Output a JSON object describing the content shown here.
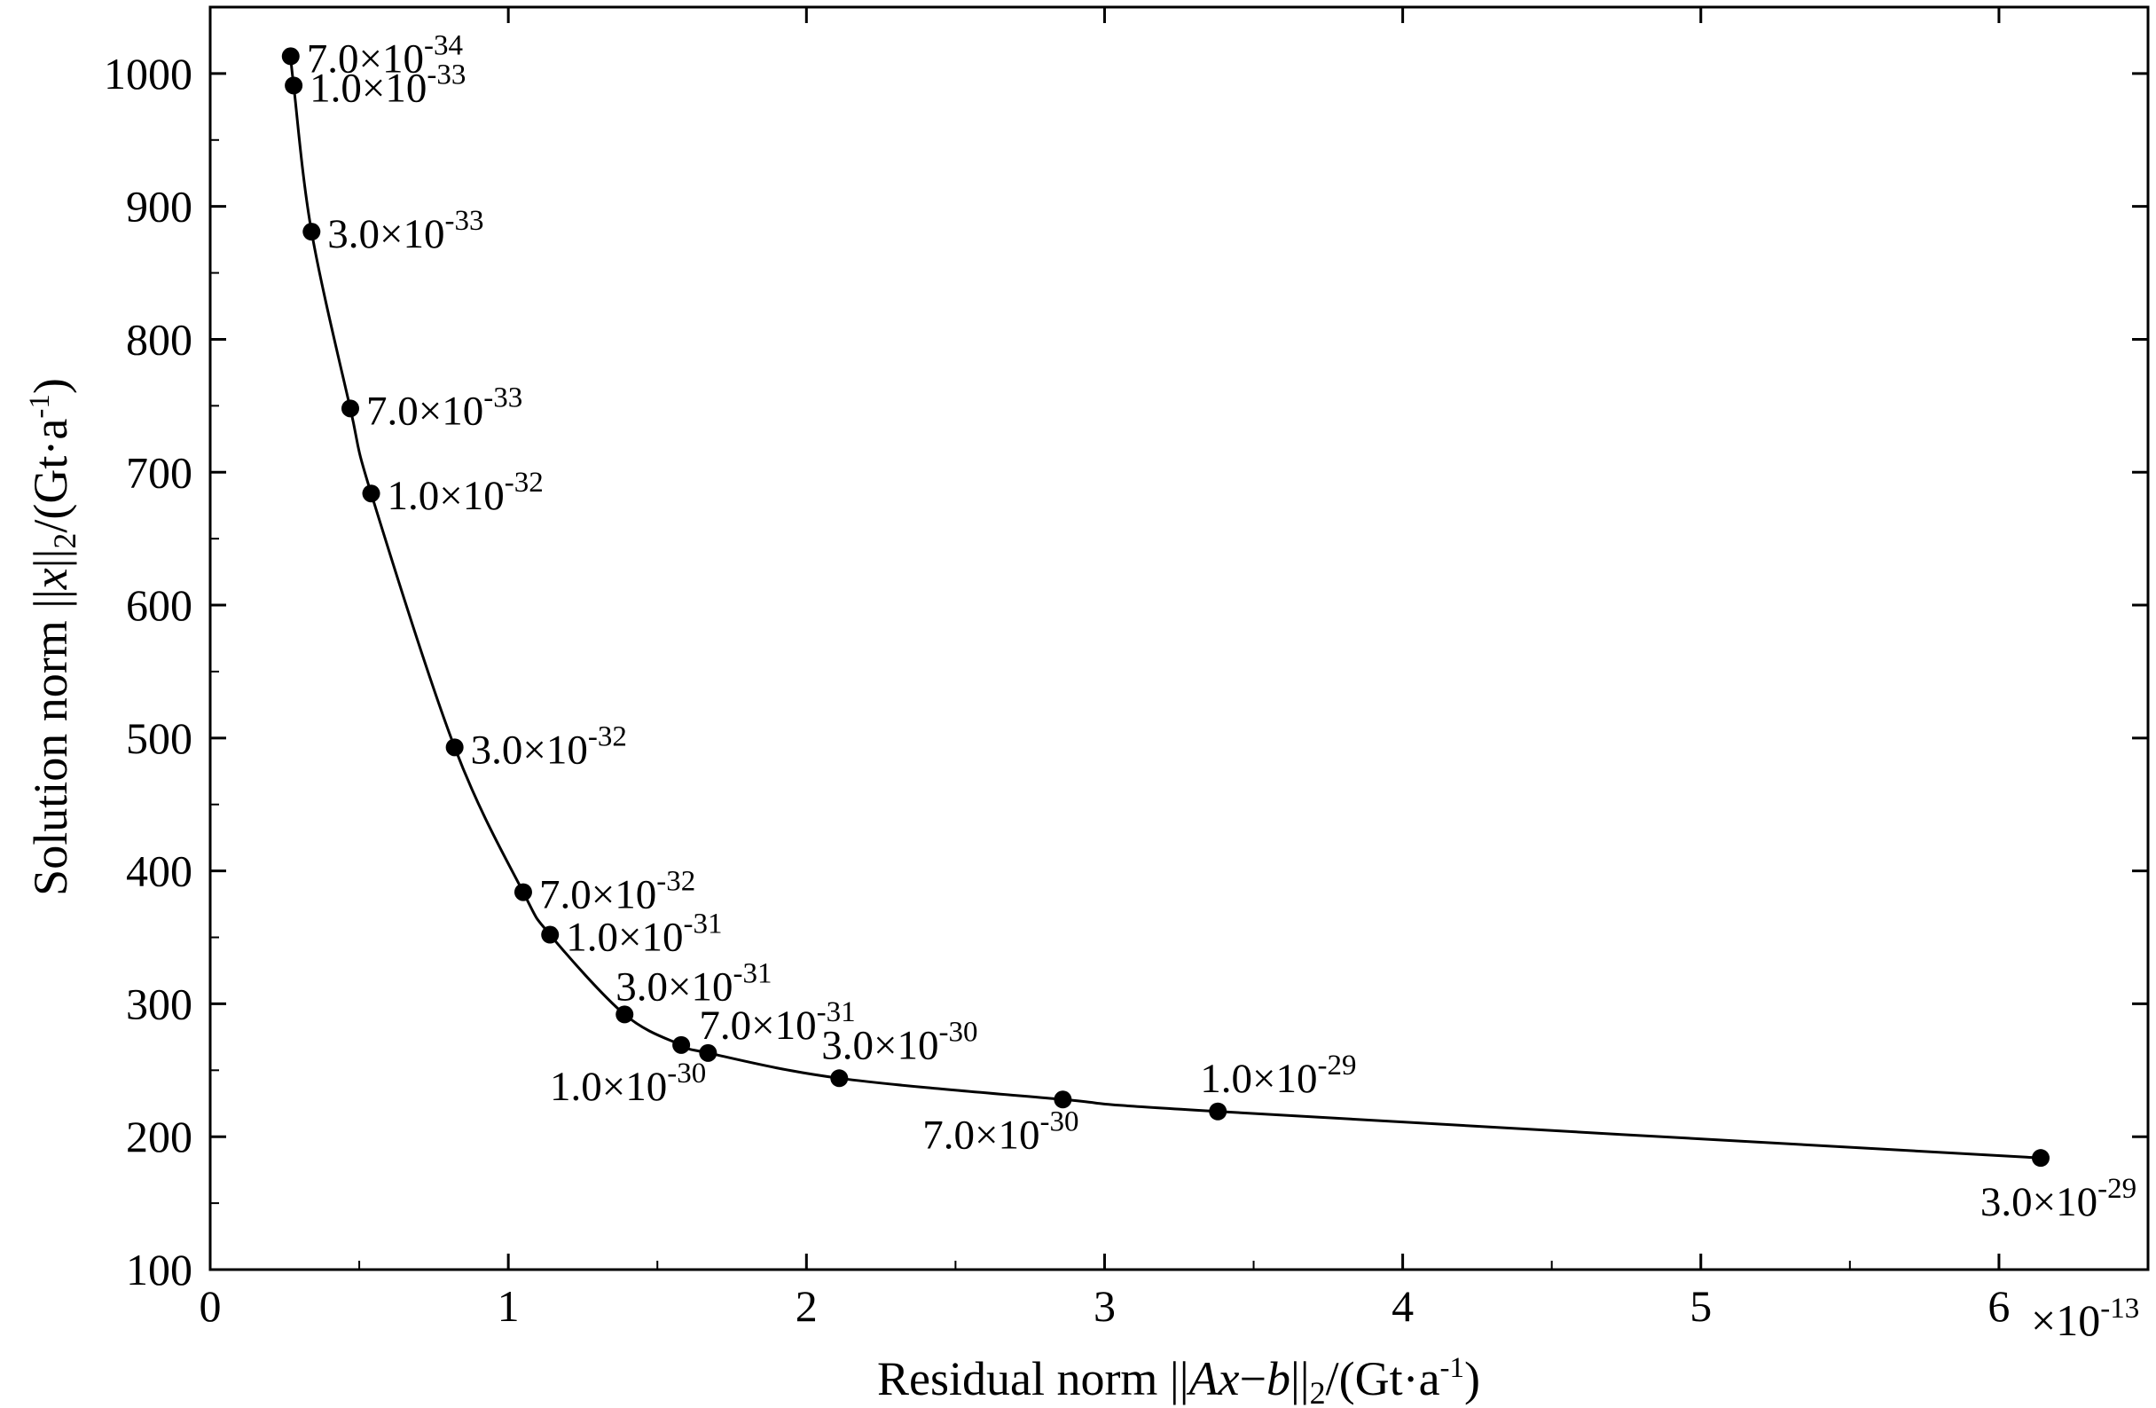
{
  "chart_data": {
    "type": "line",
    "xlabel": {
      "prefix": "Residual norm ||",
      "var": "Ax",
      "mid": "−",
      "var2": "b",
      "close": "||",
      "sub": "2",
      "unit": "/(Gt·a",
      "exp": "-1",
      "end": ")"
    },
    "ylabel": {
      "prefix": "Solution norm ||",
      "var": "x",
      "close": "||",
      "sub": "2",
      "unit": "/(Gt·a",
      "exp": "-1",
      "end": ")"
    },
    "x_multiplier": {
      "base": "×10",
      "exp": "-13"
    },
    "xlim": [
      0,
      6.5
    ],
    "ylim": [
      100,
      1050
    ],
    "xticks": [
      0,
      1,
      2,
      3,
      4,
      5,
      6
    ],
    "yticks": [
      100,
      200,
      300,
      400,
      500,
      600,
      700,
      800,
      900,
      1000
    ],
    "grid": false,
    "legend": "none",
    "line_color": "#000000",
    "points": [
      {
        "x": 0.27,
        "y": 1013,
        "label_base": "7.0×10",
        "label_exp": "-34",
        "label_pos": "right"
      },
      {
        "x": 0.28,
        "y": 991,
        "label_base": "1.0×10",
        "label_exp": "-33",
        "label_pos": "right"
      },
      {
        "x": 0.34,
        "y": 881,
        "label_base": "3.0×10",
        "label_exp": "-33",
        "label_pos": "right"
      },
      {
        "x": 0.47,
        "y": 748,
        "label_base": "7.0×10",
        "label_exp": "-33",
        "label_pos": "right"
      },
      {
        "x": 0.54,
        "y": 684,
        "label_base": "1.0×10",
        "label_exp": "-32",
        "label_pos": "right"
      },
      {
        "x": 0.82,
        "y": 493,
        "label_base": "3.0×10",
        "label_exp": "-32",
        "label_pos": "right"
      },
      {
        "x": 1.05,
        "y": 384,
        "label_base": "7.0×10",
        "label_exp": "-32",
        "label_pos": "right"
      },
      {
        "x": 1.14,
        "y": 352,
        "label_base": "1.0×10",
        "label_exp": "-31",
        "label_pos": "right"
      },
      {
        "x": 1.39,
        "y": 292,
        "label_base": "3.0×10",
        "label_exp": "-31",
        "label_pos": "above-right"
      },
      {
        "x": 1.58,
        "y": 269,
        "label_base": "1.0×10",
        "label_exp": "-30",
        "label_pos": "below"
      },
      {
        "x": 1.67,
        "y": 263,
        "label_base": "7.0×10",
        "label_exp": "-31",
        "label_pos": "above-right"
      },
      {
        "x": 2.11,
        "y": 244,
        "label_base": "3.0×10",
        "label_exp": "-30",
        "label_pos": "above"
      },
      {
        "x": 2.86,
        "y": 228,
        "label_base": "7.0×10",
        "label_exp": "-30",
        "label_pos": "below"
      },
      {
        "x": 3.38,
        "y": 219,
        "label_base": "1.0×10",
        "label_exp": "-29",
        "label_pos": "above"
      },
      {
        "x": 6.14,
        "y": 184,
        "label_base": "3.0×10",
        "label_exp": "-29",
        "label_pos": "below"
      }
    ]
  }
}
